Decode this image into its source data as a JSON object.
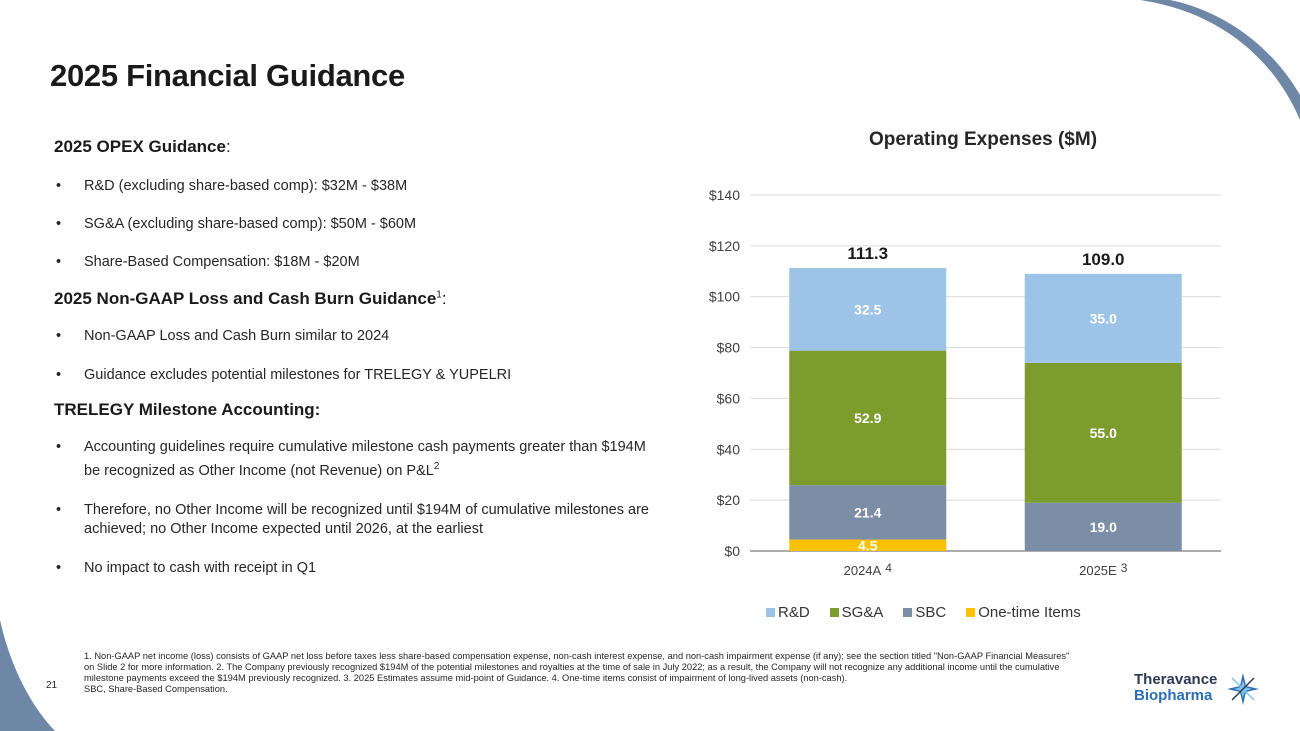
{
  "title": "2025 Financial Guidance",
  "opex": {
    "heading": "2025 OPEX Guidance",
    "heading_suffix": ":",
    "bullets": [
      "R&D (excluding share-based comp): $32M - $38M",
      "SG&A (excluding share-based comp): $50M - $60M",
      "Share-Based Compensation: $18M - $20M"
    ]
  },
  "nongaap": {
    "heading": "2025 Non-GAAP Loss and Cash Burn Guidance",
    "heading_sup": "1",
    "heading_suffix": ":",
    "bullets": [
      "Non-GAAP Loss and Cash Burn similar to 2024",
      "Guidance excludes potential milestones for TRELEGY & YUPELRI"
    ]
  },
  "trelegy": {
    "heading": "TRELEGY Milestone Accounting:",
    "bullet1": "Accounting guidelines require cumulative milestone cash payments greater than $194M be recognized as Other Income (not Revenue) on P&L",
    "bullet1_sup": "2",
    "bullet2": "Therefore, no Other Income will be recognized until $194M of cumulative milestones are achieved; no Other Income expected until 2026, at the earliest",
    "bullet3": "No impact to cash with receipt in Q1"
  },
  "chart_data": {
    "type": "bar",
    "stacked": true,
    "title": "Operating Expenses ($M)",
    "categories": [
      "2024A",
      "2025E"
    ],
    "category_sups": [
      "4",
      "3"
    ],
    "totals": [
      "111.3",
      "109.0"
    ],
    "ylim": [
      0,
      140
    ],
    "yticks": [
      0,
      20,
      40,
      60,
      80,
      100,
      120,
      140
    ],
    "ytick_labels": [
      "$0",
      "$20",
      "$40",
      "$60",
      "$80",
      "$100",
      "$120",
      "$140"
    ],
    "grid": true,
    "legend_position": "bottom",
    "series": [
      {
        "name": "One-time Items",
        "color": "#ffc000",
        "values": [
          4.5,
          0
        ],
        "labels": [
          "4.5",
          ""
        ]
      },
      {
        "name": "SBC",
        "color": "#7b8ea6",
        "values": [
          21.4,
          19.0
        ],
        "labels": [
          "21.4",
          "19.0"
        ]
      },
      {
        "name": "SG&A",
        "color": "#7c9c2e",
        "values": [
          52.9,
          55.0
        ],
        "labels": [
          "52.9",
          "55.0"
        ]
      },
      {
        "name": "R&D",
        "color": "#9dc3e6",
        "values": [
          32.5,
          35.0
        ],
        "labels": [
          "32.5",
          "35.0"
        ]
      }
    ],
    "legend_order": [
      "R&D",
      "SG&A",
      "SBC",
      "One-time Items"
    ]
  },
  "footnote": {
    "line1": "1. Non-GAAP net income (loss) consists of GAAP net loss before taxes less share-based compensation expense, non-cash interest expense, and non-cash impairment expense (if any); see the section titled \"Non-GAAP Financial Measures\" on Slide 2 for more information. 2. The Company previously recognized $194M of the potential milestones and royalties at the time of sale in July 2022; as a result, the Company will not recognize any additional income until the cumulative milestone payments exceed the $194M previously recognized. 3. 2025 Estimates assume mid-point of Guidance. 4. One-time items consist of impairment of long-lived assets (non-cash).",
    "line2": "SBC, Share-Based Compensation."
  },
  "page_number": "21",
  "logo": {
    "line1": "Theravance",
    "line2": "Biopharma"
  },
  "colors": {
    "deco": "#6f87a6",
    "logo_dark": "#2b3a56",
    "logo_blue": "#2d6fb5"
  }
}
